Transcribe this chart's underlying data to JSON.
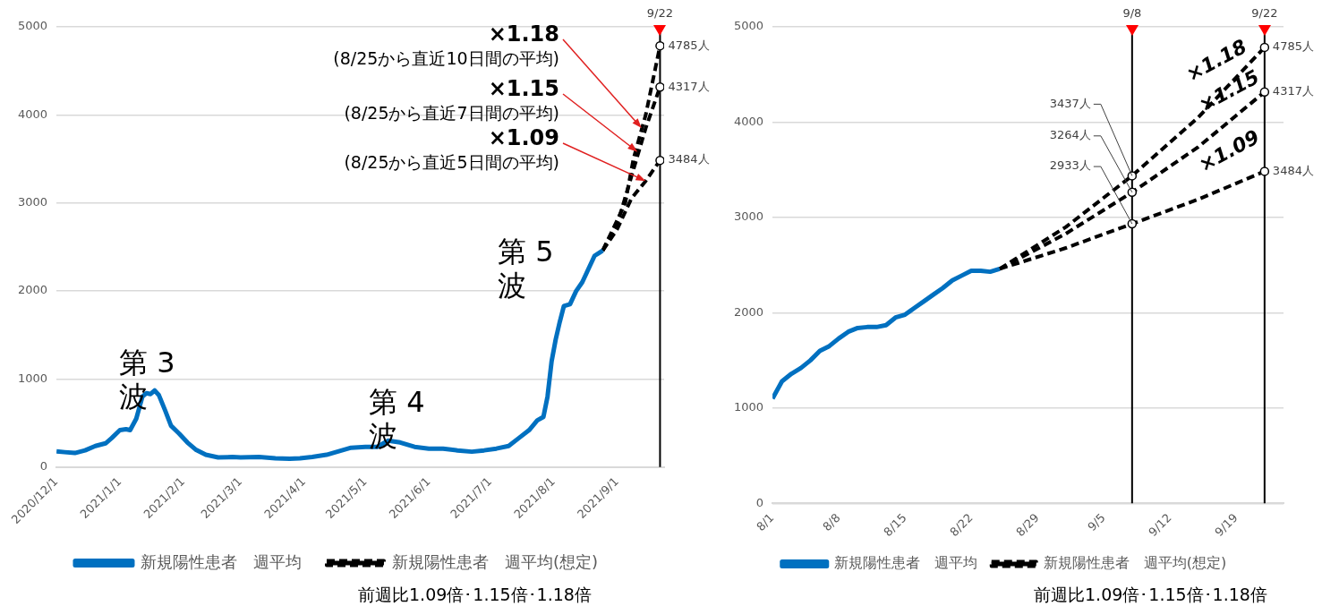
{
  "chart_data": [
    {
      "type": "line",
      "xlim": [
        "2020-12-01",
        "2021-09-24"
      ],
      "ylim": [
        0,
        5000
      ],
      "yticks": [
        0,
        1000,
        2000,
        3000,
        4000,
        5000
      ],
      "xticks": [
        {
          "value": "2020-12-01",
          "label": "2020/12/1"
        },
        {
          "value": "2021-01-01",
          "label": "2021/1/1"
        },
        {
          "value": "2021-02-01",
          "label": "2021/2/1"
        },
        {
          "value": "2021-03-01",
          "label": "2021/3/1"
        },
        {
          "value": "2021-04-01",
          "label": "2021/4/1"
        },
        {
          "value": "2021-05-01",
          "label": "2021/5/1"
        },
        {
          "value": "2021-06-01",
          "label": "2021/6/1"
        },
        {
          "value": "2021-07-01",
          "label": "2021/7/1"
        },
        {
          "value": "2021-08-01",
          "label": "2021/8/1"
        },
        {
          "value": "2021-09-01",
          "label": "2021/9/1"
        }
      ],
      "grid": "y",
      "legend": "bottom",
      "series": [
        {
          "name": "新規陽性患者　週平均",
          "color": "#0070c0",
          "x": [
            "2020-12-01",
            "2020-12-05",
            "2020-12-10",
            "2020-12-15",
            "2020-12-20",
            "2020-12-25",
            "2020-12-28",
            "2021-01-01",
            "2021-01-04",
            "2021-01-06",
            "2021-01-09",
            "2021-01-12",
            "2021-01-14",
            "2021-01-16",
            "2021-01-18",
            "2021-01-20",
            "2021-01-23",
            "2021-01-26",
            "2021-01-30",
            "2021-02-03",
            "2021-02-07",
            "2021-02-12",
            "2021-02-18",
            "2021-02-25",
            "2021-03-01",
            "2021-03-10",
            "2021-03-18",
            "2021-03-25",
            "2021-03-30",
            "2021-04-05",
            "2021-04-12",
            "2021-04-18",
            "2021-04-24",
            "2021-05-01",
            "2021-05-07",
            "2021-05-09",
            "2021-05-12",
            "2021-05-18",
            "2021-05-25",
            "2021-06-01",
            "2021-06-08",
            "2021-06-15",
            "2021-06-22",
            "2021-06-28",
            "2021-07-04",
            "2021-07-10",
            "2021-07-15",
            "2021-07-20",
            "2021-07-24",
            "2021-07-27",
            "2021-07-29",
            "2021-07-31",
            "2021-08-02",
            "2021-08-04",
            "2021-08-06",
            "2021-08-09",
            "2021-08-12",
            "2021-08-15",
            "2021-08-18",
            "2021-08-21",
            "2021-08-23",
            "2021-08-25"
          ],
          "values": [
            180,
            170,
            160,
            190,
            240,
            270,
            330,
            420,
            430,
            420,
            550,
            800,
            840,
            830,
            870,
            820,
            650,
            470,
            380,
            280,
            200,
            140,
            110,
            115,
            110,
            115,
            100,
            95,
            100,
            115,
            140,
            180,
            220,
            230,
            230,
            260,
            300,
            280,
            230,
            210,
            210,
            190,
            175,
            190,
            210,
            240,
            330,
            420,
            530,
            570,
            800,
            1200,
            1450,
            1650,
            1830,
            1850,
            2000,
            2100,
            2250,
            2400,
            2430,
            2460
          ]
        },
        {
          "name": "新規陽性患者　週平均(想定)",
          "color": "#000000",
          "line_style": "dashed",
          "x": [
            "2021-08-25",
            "2021-09-01",
            "2021-09-05",
            "2021-09-09",
            "2021-09-15",
            "2021-09-22"
          ],
          "values": [
            2460,
            2800,
            3000,
            3500,
            4000,
            4785
          ]
        },
        {
          "color": "#000000",
          "line_style": "dashed",
          "x": [
            "2021-08-25",
            "2021-09-01",
            "2021-09-08",
            "2021-09-15",
            "2021-09-22"
          ],
          "values": [
            2460,
            2750,
            3300,
            3850,
            4317
          ]
        },
        {
          "color": "#000000",
          "line_style": "dashed",
          "x": [
            "2021-08-25",
            "2021-09-01",
            "2021-09-08",
            "2021-09-15",
            "2021-09-22"
          ],
          "values": [
            2460,
            2700,
            3050,
            3250,
            3484
          ]
        },
        {
          "type": "scatter",
          "color": "#000000",
          "marker": "circle",
          "x": [
            "2021-09-22",
            "2021-09-22",
            "2021-09-22"
          ],
          "values": [
            4785,
            4317,
            3484
          ],
          "value_labels": [
            "4785人",
            "4317人",
            "3484人"
          ]
        }
      ],
      "ref_lines": [
        {
          "axis": "x",
          "value": "2021-09-22",
          "label": "9/22",
          "color": "#000000"
        }
      ],
      "annotations": [
        {
          "text": "×1.18\n(8/25から直近10日間の平均)",
          "x": "2021-09-13",
          "y": 3850
        },
        {
          "text": "×1.15\n(8/25から直近7日間の平均)",
          "x": "2021-09-11",
          "y": 3580
        },
        {
          "text": "×1.09\n(8/25から直近5日間の平均)",
          "x": "2021-09-15",
          "y": 3250
        },
        "第 3\n波",
        "第 4\n波",
        "第 5\n波",
        "前週比1.09倍･1.15倍･1.18倍"
      ]
    },
    {
      "type": "line",
      "xlim": [
        "--08-01",
        "--09-24"
      ],
      "ylim": [
        0,
        5000
      ],
      "yticks": [
        0,
        1000,
        2000,
        3000,
        4000,
        5000
      ],
      "xticks": [
        {
          "value": "--08-01",
          "label": "8/1"
        },
        {
          "value": "--08-08",
          "label": "8/8"
        },
        {
          "value": "--08-15",
          "label": "8/15"
        },
        {
          "value": "--08-22",
          "label": "8/22"
        },
        {
          "value": "--08-29",
          "label": "8/29"
        },
        {
          "value": "--09-05",
          "label": "9/5"
        },
        {
          "value": "--09-12",
          "label": "9/12"
        },
        {
          "value": "--09-19",
          "label": "9/19"
        }
      ],
      "grid": "y",
      "legend": "bottom",
      "series": [
        {
          "name": "新規陽性患者　週平均",
          "color": "#0070c0",
          "x": [
            "--08-01",
            "--08-02",
            "--08-03",
            "--08-04",
            "--08-05",
            "--08-06",
            "--08-07",
            "--08-08",
            "--08-09",
            "--08-10",
            "--08-11",
            "--08-12",
            "--08-13",
            "--08-14",
            "--08-15",
            "--08-16",
            "--08-17",
            "--08-18",
            "--08-19",
            "--08-20",
            "--08-21",
            "--08-22",
            "--08-23",
            "--08-24",
            "--08-25"
          ],
          "values": [
            1100,
            1280,
            1360,
            1420,
            1500,
            1600,
            1650,
            1730,
            1800,
            1840,
            1850,
            1850,
            1870,
            1950,
            1980,
            2050,
            2120,
            2190,
            2260,
            2340,
            2390,
            2440,
            2440,
            2430,
            2460
          ]
        },
        {
          "name": "新規陽性患者　週平均(想定)",
          "color": "#000000",
          "line_style": "dashed",
          "x": [
            "--08-25",
            "--09-01",
            "--09-08",
            "--09-15",
            "--09-22"
          ],
          "values": [
            2460,
            2900,
            3437,
            4050,
            4785
          ]
        },
        {
          "color": "#000000",
          "line_style": "dashed",
          "x": [
            "--08-25",
            "--09-01",
            "--09-08",
            "--09-15",
            "--09-22"
          ],
          "values": [
            2460,
            2830,
            3264,
            3740,
            4317
          ]
        },
        {
          "color": "#000000",
          "line_style": "dashed",
          "x": [
            "--08-25",
            "--09-01",
            "--09-08",
            "--09-15",
            "--09-22"
          ],
          "values": [
            2460,
            2680,
            2933,
            3190,
            3484
          ]
        },
        {
          "type": "scatter",
          "color": "#000000",
          "marker": "circle",
          "x": [
            "--09-08",
            "--09-08",
            "--09-08",
            "--09-22",
            "--09-22",
            "--09-22"
          ],
          "values": [
            3437,
            3264,
            2933,
            4785,
            4317,
            3484
          ],
          "value_labels": [
            "3437人",
            "3264人",
            "2933人",
            "4785人",
            "4317人",
            "3484人"
          ]
        }
      ],
      "ref_lines": [
        {
          "axis": "x",
          "value": "--09-08",
          "label": "9/8",
          "color": "#000000"
        },
        {
          "axis": "x",
          "value": "--09-22",
          "label": "9/22",
          "color": "#000000"
        }
      ],
      "annotations": [
        "×1.18",
        "×1.15",
        "×1.09",
        "前週比1.09倍･1.15倍･1.18倍"
      ]
    }
  ]
}
